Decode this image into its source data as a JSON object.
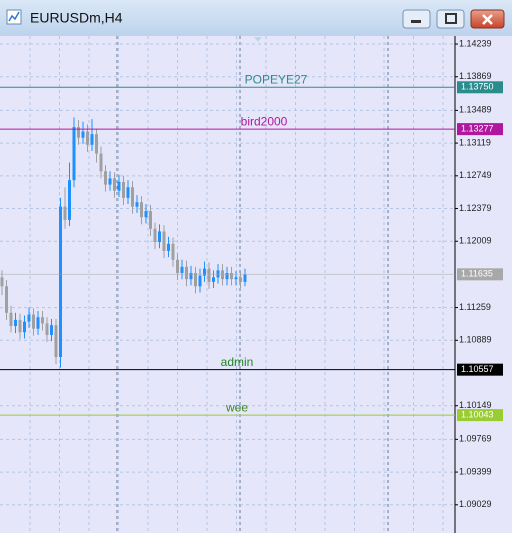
{
  "chart_data": {
    "type": "candlestick",
    "title": "EURUSDm,H4",
    "up_color": "#1e90ff",
    "down_color": "#a0a0a0",
    "grid": true,
    "ylim": [
      1.0871,
      1.1433
    ],
    "yticks": [
      1.14239,
      1.13869,
      1.13489,
      1.13119,
      1.12749,
      1.12379,
      1.12009,
      1.11259,
      1.10889,
      1.10149,
      1.09769,
      1.09399,
      1.09029
    ],
    "open": [
      1.116,
      1.115,
      1.112,
      1.1105,
      1.1112,
      1.1098,
      1.111,
      1.1118,
      1.1102,
      1.1115,
      1.1108,
      1.1095,
      1.1106,
      1.107,
      1.124,
      1.1225,
      1.127,
      1.133,
      1.1318,
      1.1325,
      1.131,
      1.1322,
      1.13,
      1.128,
      1.1265,
      1.1272,
      1.1258,
      1.1268,
      1.125,
      1.1262,
      1.124,
      1.1245,
      1.1228,
      1.1235,
      1.1215,
      1.12,
      1.1212,
      1.119,
      1.1198,
      1.118,
      1.1165,
      1.1172,
      1.1158,
      1.1165,
      1.115,
      1.1162,
      1.117,
      1.1155,
      1.116,
      1.1168,
      1.1158,
      1.1165,
      1.1158,
      1.116,
      1.1155
    ],
    "high": [
      1.1168,
      1.1157,
      1.1128,
      1.112,
      1.1119,
      1.1117,
      1.1126,
      1.1125,
      1.1122,
      1.1122,
      1.1115,
      1.1113,
      1.1113,
      1.125,
      1.1262,
      1.129,
      1.1341,
      1.1338,
      1.1336,
      1.1333,
      1.1339,
      1.1328,
      1.1308,
      1.1287,
      1.128,
      1.1279,
      1.1276,
      1.1275,
      1.127,
      1.1269,
      1.1253,
      1.1252,
      1.1243,
      1.1242,
      1.1222,
      1.122,
      1.1219,
      1.1206,
      1.1205,
      1.1187,
      1.118,
      1.1179,
      1.1173,
      1.1172,
      1.117,
      1.1178,
      1.1177,
      1.1168,
      1.1175,
      1.1175,
      1.1172,
      1.1172,
      1.1167,
      1.1167,
      1.117
    ],
    "low": [
      1.114,
      1.1112,
      1.1098,
      1.1097,
      1.109,
      1.1091,
      1.1103,
      1.1094,
      1.1095,
      1.11,
      1.1087,
      1.1088,
      1.1062,
      1.1058,
      1.1215,
      1.1218,
      1.1262,
      1.131,
      1.1311,
      1.1302,
      1.1303,
      1.129,
      1.1272,
      1.1257,
      1.1258,
      1.125,
      1.1251,
      1.1242,
      1.1243,
      1.1232,
      1.1233,
      1.122,
      1.1221,
      1.1207,
      1.1192,
      1.1193,
      1.1182,
      1.1183,
      1.1172,
      1.1157,
      1.1158,
      1.115,
      1.1151,
      1.1142,
      1.1143,
      1.1155,
      1.1147,
      1.1148,
      1.1153,
      1.1151,
      1.1151,
      1.1151,
      1.1151,
      1.1148,
      1.115
    ],
    "close": [
      1.115,
      1.112,
      1.1105,
      1.1112,
      1.1098,
      1.111,
      1.1118,
      1.1102,
      1.1115,
      1.1108,
      1.1095,
      1.1106,
      1.107,
      1.124,
      1.1225,
      1.127,
      1.133,
      1.1318,
      1.1325,
      1.131,
      1.1322,
      1.13,
      1.128,
      1.1265,
      1.1272,
      1.1258,
      1.1268,
      1.125,
      1.1262,
      1.124,
      1.1245,
      1.1228,
      1.1235,
      1.1215,
      1.12,
      1.1212,
      1.119,
      1.1198,
      1.118,
      1.1165,
      1.1172,
      1.1158,
      1.1165,
      1.115,
      1.1162,
      1.117,
      1.1155,
      1.116,
      1.1168,
      1.1158,
      1.1165,
      1.1158,
      1.116,
      1.1155,
      1.11635
    ],
    "hlines": [
      {
        "name": "POPEYE27",
        "value": 1.1375,
        "value_label": "1.13750",
        "color": "#2a8c8c",
        "text_color": "#2a8c8c"
      },
      {
        "name": "bird2000",
        "value": 1.13277,
        "color": "#b0179e",
        "text_color": "#b0179e"
      },
      {
        "name": "admin",
        "value": 1.10557,
        "color": "#000000",
        "text_color": "#1e8a1e"
      },
      {
        "name": "wee",
        "value": 1.10043,
        "color": "#9acd32",
        "text_color": "#3a8a1e"
      }
    ],
    "bid": {
      "value": 1.11635,
      "color": "#a8a8a8"
    }
  }
}
